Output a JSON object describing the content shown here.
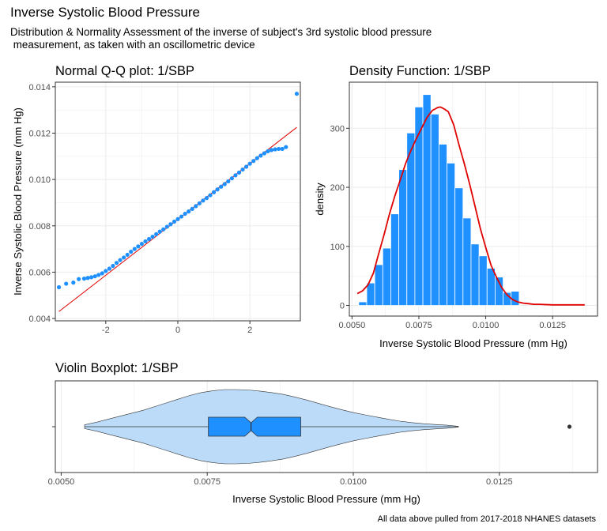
{
  "title": "Inverse Systolic Blood Pressure",
  "subtitle": "Distribution & Normality Assessment of the inverse of subject's 3rd systolic blood pressure\n measurement, as taken with an oscillometric device",
  "caption": "All data above pulled from 2017-2018 NHANES datasets",
  "colors": {
    "points": "#1E90FF",
    "line": "#E00000",
    "bars": "#1E90FF",
    "violin": "#BBDBF9",
    "box": "#1E90FF",
    "grid": "#EBEBEB"
  },
  "chart_data": [
    {
      "type": "scatter",
      "title": "Normal Q-Q plot: 1/SBP",
      "xlabel": "",
      "ylabel": "Inverse Systolic Blood Pressure (mm Hg)",
      "xlim": [
        -3.4,
        3.4
      ],
      "ylim": [
        0.0039,
        0.0142
      ],
      "xticks": [
        -2,
        0,
        2
      ],
      "yticks": [
        0.004,
        0.006,
        0.008,
        0.01,
        0.012,
        0.014
      ],
      "ytick_labels": [
        "0.004",
        "0.006",
        "0.008",
        "0.010",
        "0.012",
        "0.014"
      ],
      "grid": true,
      "reference_line": {
        "x": [
          -3.3,
          3.3
        ],
        "y": [
          0.0043,
          0.01225
        ]
      },
      "points": {
        "x": [
          -3.3,
          -3.1,
          -2.9,
          -2.75,
          -2.6,
          -2.5,
          -2.4,
          -2.3,
          -2.2,
          -2.1,
          -2.0,
          -1.9,
          -1.8,
          -1.7,
          -1.6,
          -1.5,
          -1.4,
          -1.3,
          -1.2,
          -1.1,
          -1.0,
          -0.9,
          -0.8,
          -0.7,
          -0.6,
          -0.5,
          -0.4,
          -0.3,
          -0.2,
          -0.1,
          0.0,
          0.1,
          0.2,
          0.3,
          0.4,
          0.5,
          0.6,
          0.7,
          0.8,
          0.9,
          1.0,
          1.1,
          1.2,
          1.3,
          1.4,
          1.5,
          1.6,
          1.7,
          1.8,
          1.9,
          2.0,
          2.1,
          2.2,
          2.3,
          2.4,
          2.5,
          2.6,
          2.7,
          2.8,
          2.9,
          3.0,
          3.3
        ],
        "y": [
          0.00535,
          0.0055,
          0.00555,
          0.0057,
          0.00572,
          0.00575,
          0.00578,
          0.00582,
          0.00588,
          0.00595,
          0.00605,
          0.00615,
          0.00627,
          0.0064,
          0.00652,
          0.00663,
          0.00675,
          0.00688,
          0.007,
          0.00711,
          0.00722,
          0.00733,
          0.00743,
          0.00753,
          0.00764,
          0.00775,
          0.00785,
          0.00796,
          0.00807,
          0.00818,
          0.00829,
          0.0084,
          0.00852,
          0.00862,
          0.00873,
          0.00885,
          0.00897,
          0.00909,
          0.0092,
          0.00932,
          0.00945,
          0.00957,
          0.00969,
          0.0098,
          0.00992,
          0.01005,
          0.01018,
          0.0103,
          0.01043,
          0.01055,
          0.01068,
          0.0108,
          0.01092,
          0.01103,
          0.01113,
          0.01122,
          0.01127,
          0.0113,
          0.01132,
          0.01132,
          0.0114,
          0.0137
        ]
      }
    },
    {
      "type": "bar",
      "title": "Density Function: 1/SBP",
      "xlabel": "Inverse Systolic Blood Pressure (mm Hg)",
      "ylabel": "density",
      "xlim": [
        0.0049,
        0.01418
      ],
      "ylim": [
        -18,
        378
      ],
      "xticks": [
        0.005,
        0.0075,
        0.01,
        0.0125
      ],
      "xtick_labels": [
        "0.0050",
        "0.0075",
        "0.0100",
        "0.0125"
      ],
      "yticks": [
        0,
        100,
        200,
        300
      ],
      "grid": true,
      "bin_width": 0.0003,
      "bin_centers": [
        0.0054,
        0.0057,
        0.006,
        0.0063,
        0.0066,
        0.0069,
        0.0072,
        0.0075,
        0.0078,
        0.0081,
        0.0084,
        0.0087,
        0.009,
        0.0093,
        0.0096,
        0.0099,
        0.0102,
        0.0105,
        0.0108,
        0.0111
      ],
      "values": [
        6,
        38,
        69,
        97,
        155,
        230,
        292,
        336,
        357,
        324,
        273,
        241,
        199,
        148,
        104,
        84,
        63,
        48,
        22,
        24
      ],
      "density_curve": {
        "x": [
          0.0052,
          0.0054,
          0.0056,
          0.0058,
          0.006,
          0.0062,
          0.0064,
          0.0066,
          0.0068,
          0.007,
          0.0072,
          0.0074,
          0.0076,
          0.0078,
          0.008,
          0.0082,
          0.0083,
          0.0084,
          0.0086,
          0.0088,
          0.009,
          0.0092,
          0.0094,
          0.0096,
          0.0098,
          0.01,
          0.0102,
          0.0104,
          0.0106,
          0.0108,
          0.011,
          0.0112,
          0.0114,
          0.0116,
          0.0118,
          0.012,
          0.0125,
          0.013,
          0.0137
        ],
        "y": [
          20,
          25,
          35,
          55,
          88,
          120,
          155,
          185,
          212,
          240,
          262,
          282,
          300,
          318,
          330,
          335,
          336,
          334,
          328,
          306,
          272,
          240,
          205,
          168,
          130,
          98,
          68,
          48,
          30,
          18,
          10,
          6,
          4,
          3,
          2,
          2,
          1,
          1,
          1
        ]
      }
    },
    {
      "type": "violin",
      "title": "Violin Boxplot: 1/SBP",
      "xlabel": "Inverse Systolic Blood Pressure (mm Hg)",
      "xlim": [
        0.0049,
        0.01418
      ],
      "xticks": [
        0.005,
        0.0075,
        0.01,
        0.0125
      ],
      "xtick_labels": [
        "0.0050",
        "0.0075",
        "0.0100",
        "0.0125"
      ],
      "grid": true,
      "whiskers": [
        0.0054,
        0.0118
      ],
      "box": {
        "q1": 0.00752,
        "median": 0.00825,
        "q3": 0.0091
      },
      "outliers": [
        0.0137
      ],
      "violin_width": {
        "x": [
          0.0054,
          0.0056,
          0.0058,
          0.006,
          0.0062,
          0.0064,
          0.0066,
          0.0068,
          0.007,
          0.0072,
          0.0074,
          0.0076,
          0.0078,
          0.008,
          0.0082,
          0.0084,
          0.0086,
          0.0088,
          0.009,
          0.0092,
          0.0094,
          0.0096,
          0.0098,
          0.01,
          0.0102,
          0.0104,
          0.0106,
          0.0108,
          0.011,
          0.0112,
          0.0114,
          0.0116,
          0.0118
        ],
        "y": [
          0.05,
          0.12,
          0.2,
          0.28,
          0.36,
          0.44,
          0.54,
          0.64,
          0.74,
          0.84,
          0.92,
          0.97,
          1.0,
          1.0,
          0.99,
          0.96,
          0.92,
          0.87,
          0.8,
          0.72,
          0.63,
          0.54,
          0.46,
          0.38,
          0.32,
          0.26,
          0.2,
          0.15,
          0.11,
          0.08,
          0.06,
          0.04,
          0.01
        ]
      }
    }
  ]
}
